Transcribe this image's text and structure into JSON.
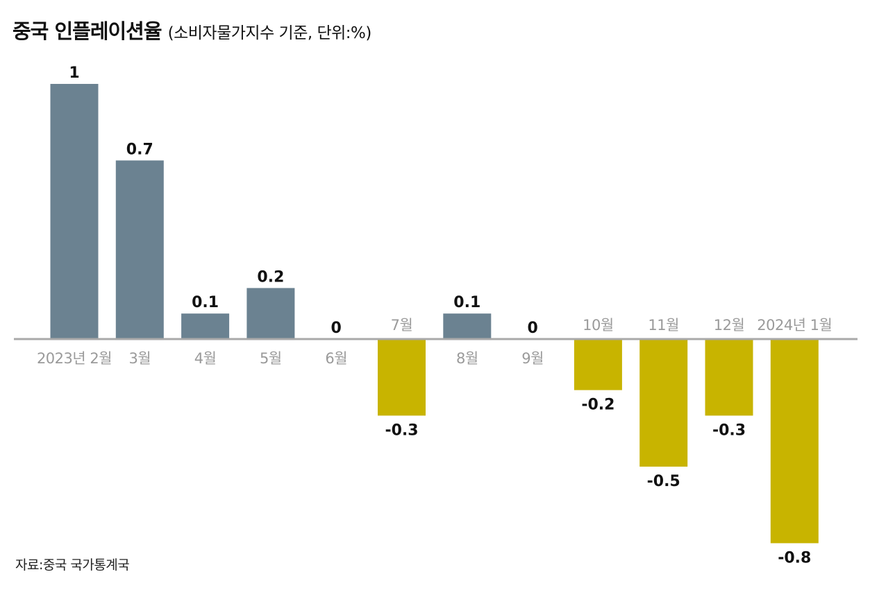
{
  "header": {
    "title": "중국 인플레이션율",
    "subtitle": "(소비자물가지수 기준, 단위:%)"
  },
  "footer": {
    "source": "자료:중국 국가통계국"
  },
  "chart_data": {
    "type": "bar",
    "title": "중국 인플레이션율",
    "subtitle": "(소비자물가지수 기준, 단위:%)",
    "unit": "%",
    "xlabel": "",
    "ylabel": "",
    "ylim": [
      -0.8,
      1
    ],
    "grid": false,
    "categories": [
      "2023년 2월",
      "3월",
      "4월",
      "5월",
      "6월",
      "7월",
      "8월",
      "9월",
      "10월",
      "11월",
      "12월",
      "2024년 1월"
    ],
    "values": [
      1,
      0.7,
      0.1,
      0.2,
      0,
      -0.3,
      0.1,
      0,
      -0.2,
      -0.5,
      -0.3,
      -0.8
    ],
    "value_labels": [
      "1",
      "0.7",
      "0.1",
      "0.2",
      "0",
      "-0.3",
      "0.1",
      "0",
      "-0.2",
      "-0.5",
      "-0.3",
      "-0.8"
    ],
    "colors": {
      "positive": "#6b8291",
      "negative": "#c8b400",
      "axis": "#a9a9a9",
      "category_label": "#9a9a9a",
      "value_label": "#111111"
    },
    "source": "자료:중국 국가통계국"
  }
}
